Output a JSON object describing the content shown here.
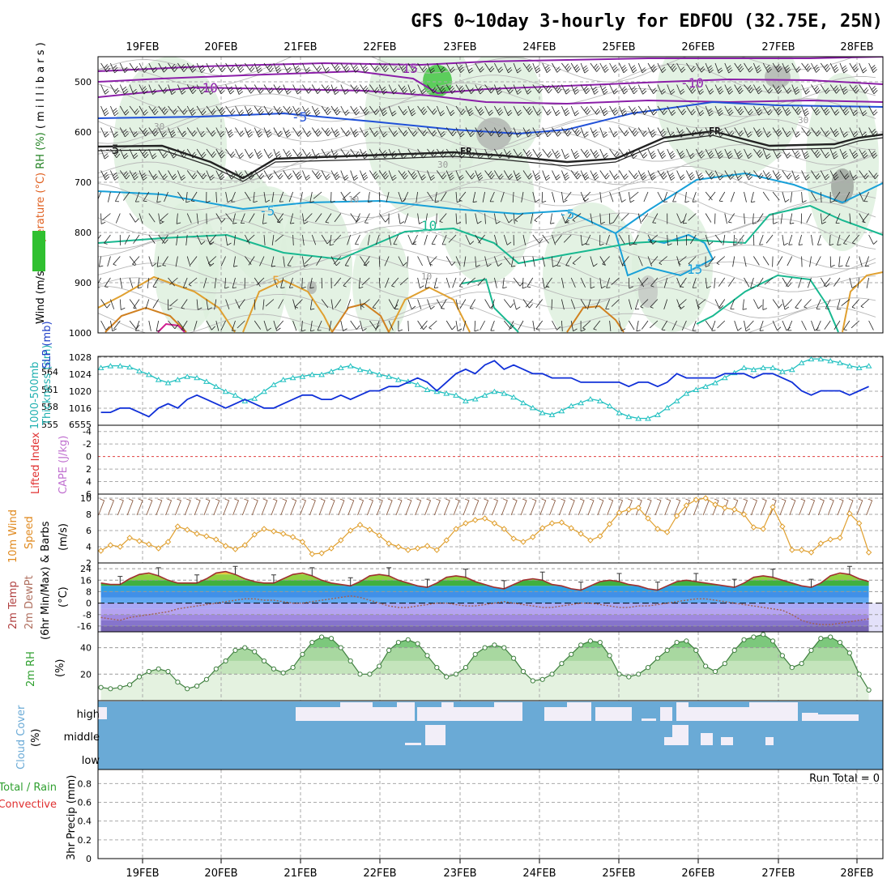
{
  "title": "GFS 0~10day 3-hourly for EDFOU (32.75E, 25N)",
  "dates": [
    "19FEB",
    "20FEB",
    "21FEB",
    "22FEB",
    "23FEB",
    "24FEB",
    "25FEB",
    "26FEB",
    "27FEB",
    "28FEB"
  ],
  "colors": {
    "purple": "#8b1fa8",
    "blue": "#2050d8",
    "ltblue": "#18a0d8",
    "teal": "#18b890",
    "orange": "#e0a030",
    "cyan": "#20c0c0",
    "green": "#60c060",
    "cloud": "#6aaad6",
    "slp": "#1030d8"
  },
  "chart_data": [
    {
      "type": "area",
      "panel": "upper-air",
      "ylabel_parts": [
        "Wind (m/s)",
        "Temperature (°C)",
        "RH (%)",
        "( m i l l i b a r s )"
      ],
      "yticks": [
        "500",
        "600",
        "700",
        "800",
        "900",
        "1000"
      ],
      "ylim": [
        1000,
        450
      ],
      "contour_labels": [
        "-15",
        "-10",
        "-10",
        "-5",
        "-5",
        "-5",
        "5",
        "10",
        "15",
        "-5",
        "FR",
        "FR",
        "FR"
      ],
      "rh_labels": [
        "30",
        "30",
        "10",
        "10",
        "30",
        "30"
      ]
    },
    {
      "type": "line",
      "panel": "slp-thickness",
      "ylabel_parts": [
        "1000-500mb",
        "Thickness (dm)",
        "SLP (mb)"
      ],
      "yticks_left": [
        "564",
        "561",
        "558",
        "555"
      ],
      "yticks_right": [
        "1028",
        "1024",
        "1020",
        "1016",
        "6555"
      ],
      "series": [
        {
          "name": "SLP (mb)",
          "ylim": [
            1012,
            1028
          ],
          "values": [
            1015,
            1015,
            1016,
            1016,
            1015,
            1014,
            1016,
            1017,
            1016,
            1018,
            1019,
            1018,
            1017,
            1016,
            1017,
            1018,
            1017,
            1016,
            1016,
            1017,
            1018,
            1019,
            1019,
            1018,
            1018,
            1019,
            1018,
            1019,
            1020,
            1020,
            1021,
            1021,
            1022,
            1023,
            1022,
            1020,
            1022,
            1024,
            1025,
            1024,
            1026,
            1027,
            1025,
            1026,
            1025,
            1024,
            1024,
            1023,
            1023,
            1023,
            1022,
            1022,
            1022,
            1022,
            1022,
            1021,
            1022,
            1022,
            1021,
            1022,
            1024,
            1023,
            1023,
            1023,
            1023,
            1024,
            1024,
            1024,
            1023,
            1024,
            1024,
            1023,
            1022,
            1020,
            1019,
            1020,
            1020,
            1020,
            1019,
            1020,
            1021
          ]
        },
        {
          "name": "1000-500mb Thickness (dm)",
          "ylim": [
            554.5,
            565.5
          ],
          "values": [
            563.7,
            564.0,
            564.0,
            563.8,
            563.2,
            562.6,
            561.8,
            561.3,
            561.8,
            562.3,
            562.1,
            561.5,
            560.7,
            559.9,
            559.3,
            558.4,
            558.8,
            559.9,
            561.0,
            561.8,
            562.1,
            562.3,
            562.6,
            562.6,
            563.1,
            563.7,
            564.0,
            563.4,
            563.1,
            562.6,
            562.3,
            561.8,
            561.5,
            561.0,
            560.2,
            559.9,
            559.6,
            559.3,
            558.4,
            558.7,
            559.3,
            559.9,
            559.6,
            559.0,
            558.1,
            557.3,
            556.5,
            556.2,
            556.8,
            557.6,
            558.1,
            558.7,
            558.4,
            557.6,
            556.5,
            555.9,
            555.6,
            555.6,
            556.2,
            557.3,
            558.4,
            559.6,
            560.2,
            560.7,
            561.3,
            562.1,
            562.9,
            563.7,
            563.4,
            563.7,
            563.7,
            563.1,
            563.4,
            564.5,
            565.1,
            565.1,
            564.8,
            564.5,
            564.0,
            563.7,
            564.0
          ]
        }
      ]
    },
    {
      "type": "line",
      "panel": "cape-li",
      "ylabel_parts": [
        "Lifted Index",
        "CAPE (J/kg)"
      ],
      "yticks": [
        "-4",
        "-2",
        "0",
        "2",
        "4",
        "6"
      ],
      "ylim": [
        6,
        -5
      ]
    },
    {
      "type": "line",
      "panel": "10m-wind",
      "ylabel_parts": [
        "10m Wind",
        "Speed",
        "& Barbs",
        "(m/s)"
      ],
      "yticks": [
        "10",
        "8",
        "6",
        "4",
        "2"
      ],
      "ylim": [
        2,
        10.5
      ],
      "series": [
        {
          "name": "10m wind speed",
          "values": [
            3.5,
            4.2,
            4.0,
            5.1,
            4.7,
            4.3,
            3.8,
            4.6,
            6.5,
            6.1,
            5.6,
            5.3,
            4.9,
            4.1,
            3.7,
            4.2,
            5.5,
            6.2,
            5.9,
            5.6,
            5.2,
            4.6,
            3.1,
            3.2,
            3.8,
            4.8,
            6.0,
            6.7,
            6.1,
            5.4,
            4.4,
            4.0,
            3.6,
            3.8,
            4.1,
            3.6,
            4.8,
            6.2,
            6.9,
            7.3,
            7.5,
            6.9,
            6.2,
            5.0,
            4.6,
            5.2,
            6.3,
            6.9,
            7.0,
            6.3,
            5.6,
            4.8,
            5.3,
            6.8,
            8.2,
            8.6,
            8.8,
            7.5,
            6.2,
            5.8,
            7.8,
            9.1,
            9.8,
            10.0,
            9.2,
            8.8,
            8.6,
            8.0,
            6.4,
            6.2,
            8.9,
            6.5,
            3.6,
            3.6,
            3.3,
            4.4,
            4.9,
            5.1,
            8.1,
            6.9,
            3.3
          ]
        }
      ]
    },
    {
      "type": "area",
      "panel": "2m-temp",
      "ylabel_parts": [
        "2m Temp",
        "2m DewPt",
        "(6hr Min/Max)",
        "(°C)"
      ],
      "yticks": [
        "24",
        "16",
        "8",
        "0",
        "-8",
        "-16"
      ],
      "ylim": [
        -20,
        28
      ],
      "series": [
        {
          "name": "2m Temp",
          "values": [
            14,
            13,
            13,
            17,
            20,
            21,
            19,
            16,
            14,
            14,
            14,
            17,
            21,
            22,
            20,
            17,
            15,
            14,
            14,
            17,
            20,
            21,
            19,
            16,
            14,
            13,
            12,
            15,
            19,
            20,
            19,
            16,
            14,
            12,
            11,
            14,
            18,
            19,
            18,
            15,
            13,
            11,
            10,
            13,
            16,
            17,
            16,
            13,
            12,
            10,
            9,
            12,
            15,
            16,
            15,
            13,
            12,
            10,
            9,
            12,
            15,
            16,
            15,
            14,
            13,
            12,
            11,
            14,
            18,
            19,
            18,
            16,
            14,
            12,
            11,
            14,
            19,
            21,
            20,
            17,
            15
          ]
        },
        {
          "name": "2m DewPt",
          "values": [
            -10,
            -11,
            -12,
            -10,
            -9,
            -8,
            -7,
            -6,
            -4,
            -3,
            -2,
            -1,
            0,
            1,
            2,
            3,
            3,
            2,
            2,
            1,
            0,
            0,
            1,
            2,
            3,
            4,
            5,
            4,
            2,
            0,
            -2,
            -3,
            -3,
            -2,
            -1,
            0,
            0,
            -1,
            -2,
            -2,
            -1,
            0,
            1,
            0,
            -1,
            -2,
            -3,
            -3,
            -2,
            -1,
            0,
            0,
            -1,
            -2,
            -3,
            -3,
            -2,
            -2,
            -1,
            0,
            1,
            2,
            3,
            3,
            2,
            1,
            0,
            -1,
            -2,
            -3,
            -4,
            -5,
            -8,
            -12,
            -14,
            -15,
            -15,
            -14,
            -13,
            -12,
            -11
          ]
        }
      ]
    },
    {
      "type": "area",
      "panel": "2m-rh",
      "ylabel_parts": [
        "2m RH",
        "(%)"
      ],
      "yticks": [
        "40",
        "20"
      ],
      "ylim": [
        0,
        52
      ],
      "series": [
        {
          "name": "2m RH",
          "values": [
            10,
            9,
            10,
            12,
            18,
            22,
            24,
            22,
            14,
            9,
            11,
            16,
            24,
            30,
            38,
            40,
            37,
            30,
            24,
            21,
            25,
            35,
            44,
            48,
            47,
            40,
            30,
            20,
            20,
            26,
            38,
            44,
            46,
            43,
            34,
            25,
            18,
            20,
            25,
            35,
            40,
            42,
            40,
            32,
            22,
            15,
            16,
            20,
            28,
            35,
            42,
            45,
            44,
            34,
            20,
            18,
            20,
            25,
            32,
            38,
            44,
            45,
            38,
            26,
            22,
            28,
            38,
            46,
            48,
            50,
            45,
            34,
            25,
            28,
            38,
            47,
            48,
            44,
            36,
            20,
            8
          ]
        }
      ]
    },
    {
      "type": "heatmap",
      "panel": "cloud-cover",
      "ylabel_parts": [
        "Cloud Cover",
        "(%)"
      ],
      "rows": [
        "high",
        "middle",
        "low"
      ]
    },
    {
      "type": "bar",
      "panel": "precip",
      "ylabel_parts": [
        "Total / Rain",
        "Convective",
        "3hr Precip (mm)"
      ],
      "yticks": [
        "0.8",
        "0.6",
        "0.4",
        "0.2",
        "0"
      ],
      "ylim": [
        0,
        0.95
      ],
      "annotation": "Run Total = 0"
    }
  ]
}
